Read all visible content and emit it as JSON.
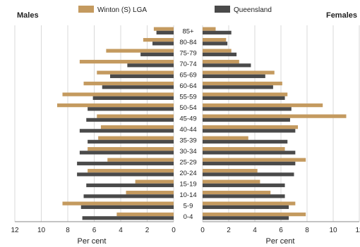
{
  "chart_data": {
    "type": "bar",
    "subtype": "population-pyramid",
    "left_title": "Males",
    "right_title": "Females",
    "xlabel_left": "Per cent",
    "xlabel_right": "Per cent",
    "left_ticks": [
      "12",
      "10",
      "8",
      "6",
      "4",
      "2",
      "0"
    ],
    "right_ticks": [
      "0",
      "2",
      "4",
      "6",
      "8",
      "10",
      "12"
    ],
    "xlim": [
      0,
      12
    ],
    "grid": true,
    "legend_position": "top",
    "categories": [
      "85+",
      "80-84",
      "75-79",
      "70-74",
      "65-69",
      "60-64",
      "55-59",
      "50-54",
      "45-49",
      "40-44",
      "35-39",
      "30-34",
      "25-29",
      "20-24",
      "15-19",
      "10-14",
      "5-9",
      "0-4"
    ],
    "series": [
      {
        "name": "Winton (S) LGA",
        "color": "#c49a5f",
        "males": [
          1.5,
          2.3,
          5.1,
          7.1,
          5.8,
          6.8,
          8.4,
          8.8,
          5.8,
          5.5,
          5.7,
          6.5,
          5.0,
          6.5,
          2.9,
          3.6,
          8.4,
          4.3
        ],
        "females": [
          1.0,
          1.8,
          2.2,
          2.8,
          5.5,
          6.1,
          6.5,
          9.2,
          11.0,
          7.3,
          3.5,
          6.3,
          7.9,
          4.2,
          4.4,
          5.2,
          7.1,
          7.9
        ]
      },
      {
        "name": "Queensland",
        "color": "#4a4a4a",
        "males": [
          1.3,
          1.6,
          2.5,
          3.5,
          4.8,
          5.4,
          6.1,
          6.5,
          6.6,
          7.1,
          6.5,
          7.1,
          7.3,
          7.3,
          6.6,
          6.8,
          7.0,
          6.9
        ],
        "females": [
          2.2,
          1.9,
          2.6,
          3.7,
          4.8,
          5.4,
          6.3,
          6.8,
          6.7,
          7.1,
          6.5,
          7.1,
          7.1,
          7.0,
          6.3,
          6.3,
          6.6,
          6.6
        ]
      }
    ]
  }
}
